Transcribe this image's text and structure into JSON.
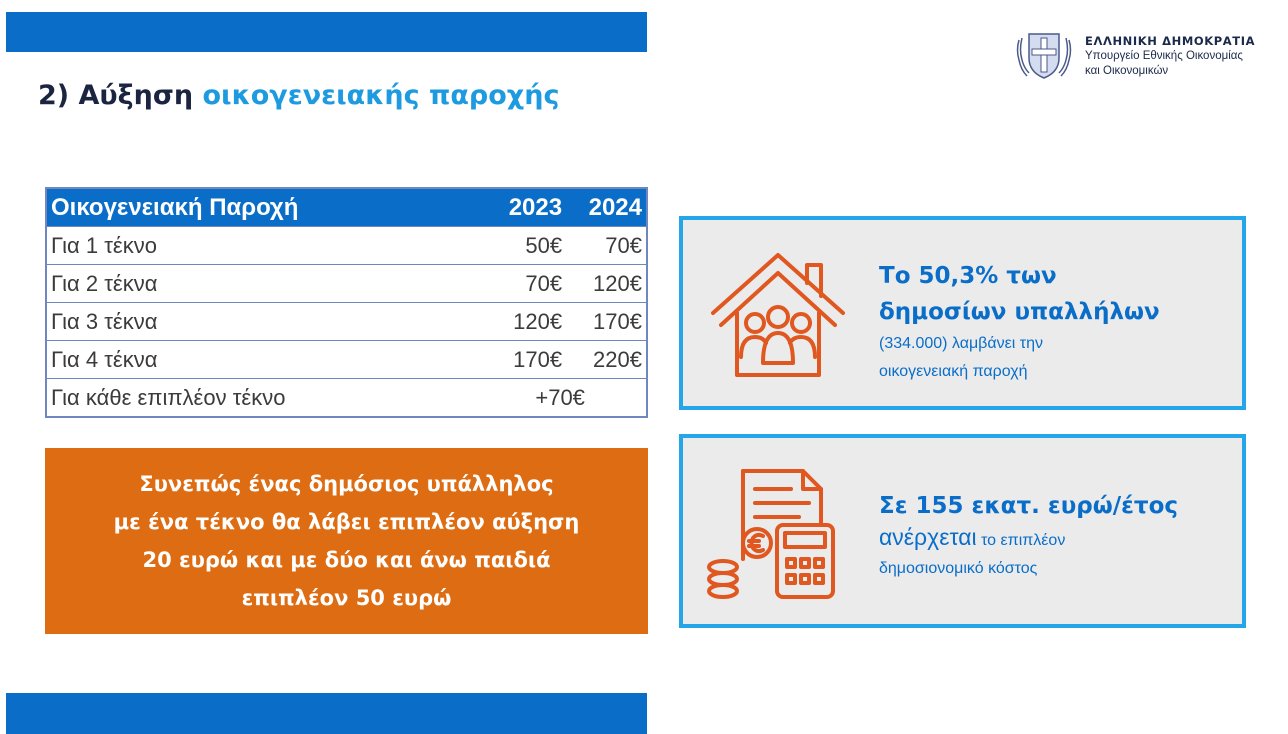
{
  "header": {
    "title_prefix": "2) Αύξηση",
    "title_highlight": "οικογενειακής παροχής"
  },
  "logo": {
    "icon": "greek-coat-of-arms-icon",
    "title": "ΕΛΛΗΝΙΚΗ ΔΗΜΟΚΡΑΤΙΑ",
    "subtitle_line1": "Υπουργείο Εθνικής Οικονομίας",
    "subtitle_line2": "και Οικονομικών"
  },
  "table": {
    "headers": [
      "Οικογενειακή Παροχή",
      "2023",
      "2024"
    ],
    "rows": [
      {
        "label": "Για 1 τέκνο",
        "y2023": "50€",
        "y2024": "70€"
      },
      {
        "label": "Για 2 τέκνα",
        "y2023": "70€",
        "y2024": "120€"
      },
      {
        "label": "Για 3 τέκνα",
        "y2023": "120€",
        "y2024": "170€"
      },
      {
        "label": "Για 4 τέκνα",
        "y2023": "170€",
        "y2024": "220€"
      }
    ],
    "extra_row": {
      "label": "Για κάθε επιπλέον τέκνο",
      "value": "+70€"
    }
  },
  "summary": {
    "text": "Συνεπώς ένας δημόσιος υπάλληλος\nμε ένα τέκνο θα λάβει επιπλέον αύξηση\n20 ευρώ και με δύο και άνω παιδιά\nεπιπλέον 50 ευρώ"
  },
  "card1": {
    "icon": "house-family-icon",
    "line1": "Το 50,3% των",
    "line2": "δημοσίων υπαλλήλων",
    "line3": "(334.000) λαμβάνει την",
    "line4": "οικογενειακή παροχή"
  },
  "card2": {
    "icon": "invoice-calculator-icon",
    "line1": "Σε 155 εκατ. ευρώ/έτος",
    "line2_big": "ανέρχεται",
    "line2_small": " το επιπλέον",
    "line3": "δημοσιονομικό κόστος"
  },
  "colors": {
    "brand_blue": "#0a6ec9",
    "accent_cyan": "#1e9be0",
    "orange": "#de6c12",
    "card_border": "#24a6e8",
    "icon_orange": "#e0571f"
  }
}
